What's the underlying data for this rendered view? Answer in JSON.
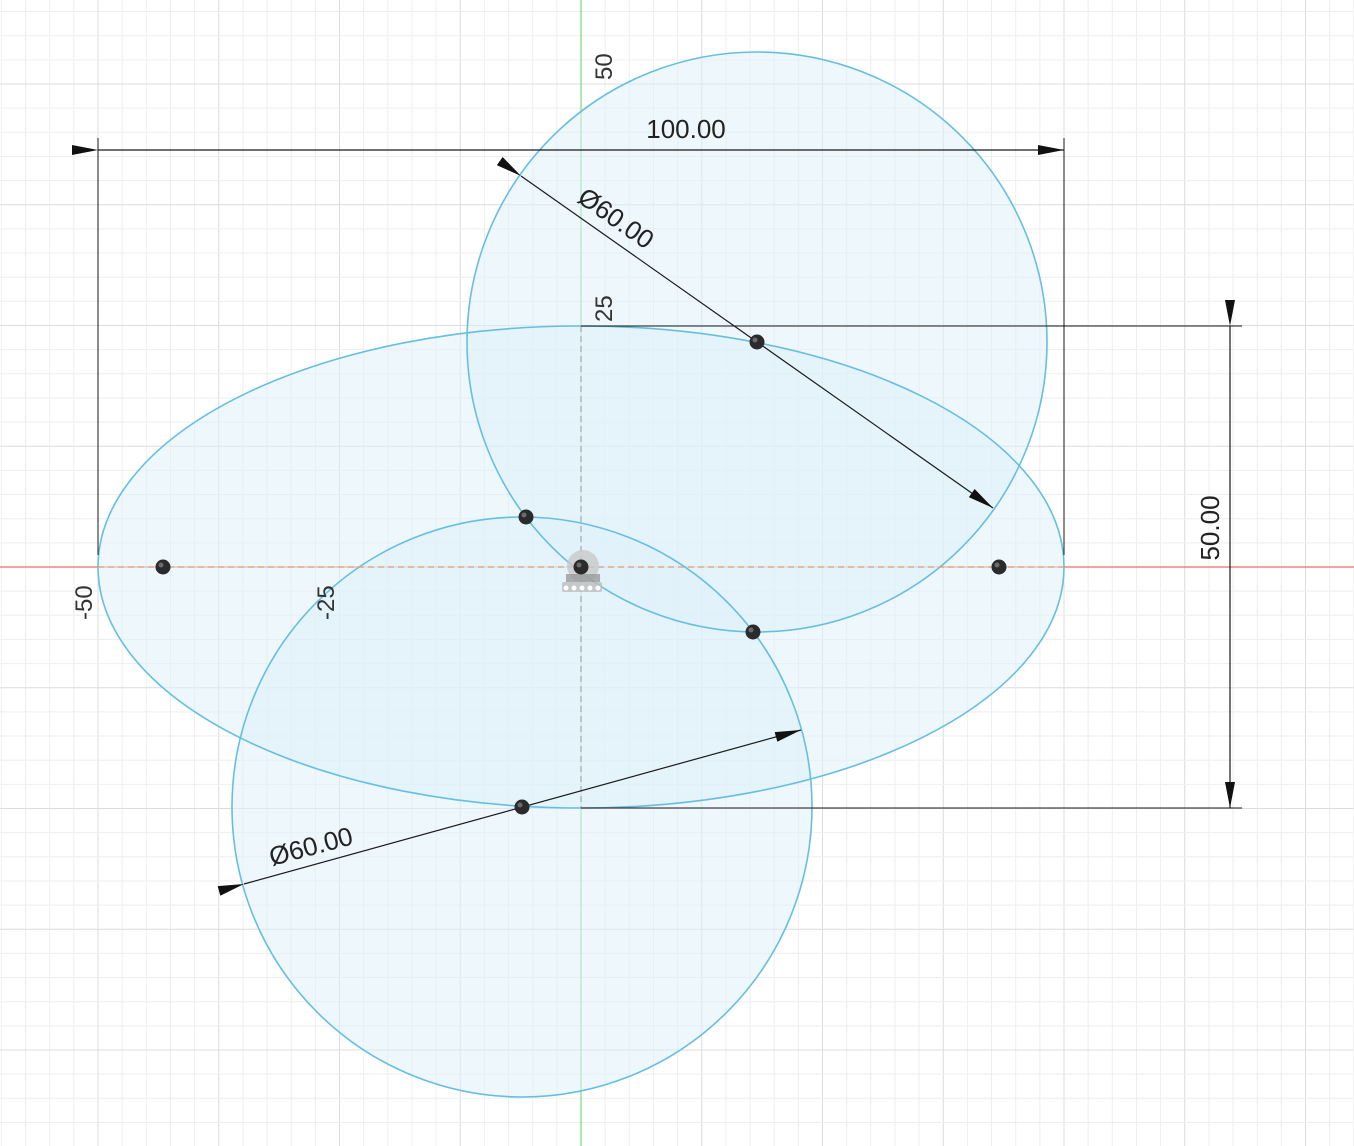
{
  "axis_labels": {
    "y_top": "50",
    "y_mid": "25",
    "x_left": "-50",
    "x_mid": "-25"
  },
  "dimensions": {
    "width": "100.00",
    "height": "50.00",
    "diameter_top": "Ø60.00",
    "diameter_bottom": "Ø60.00"
  },
  "colors": {
    "profile_stroke": "#66bfe0",
    "profile_fill": "#dff0fa",
    "x_axis": "#ee6b6b",
    "y_axis": "#7fd67f",
    "dimension": "#1a1a1a"
  },
  "icons": {
    "origin": "origin-icon",
    "sketch_point": "sketch-point-icon"
  }
}
